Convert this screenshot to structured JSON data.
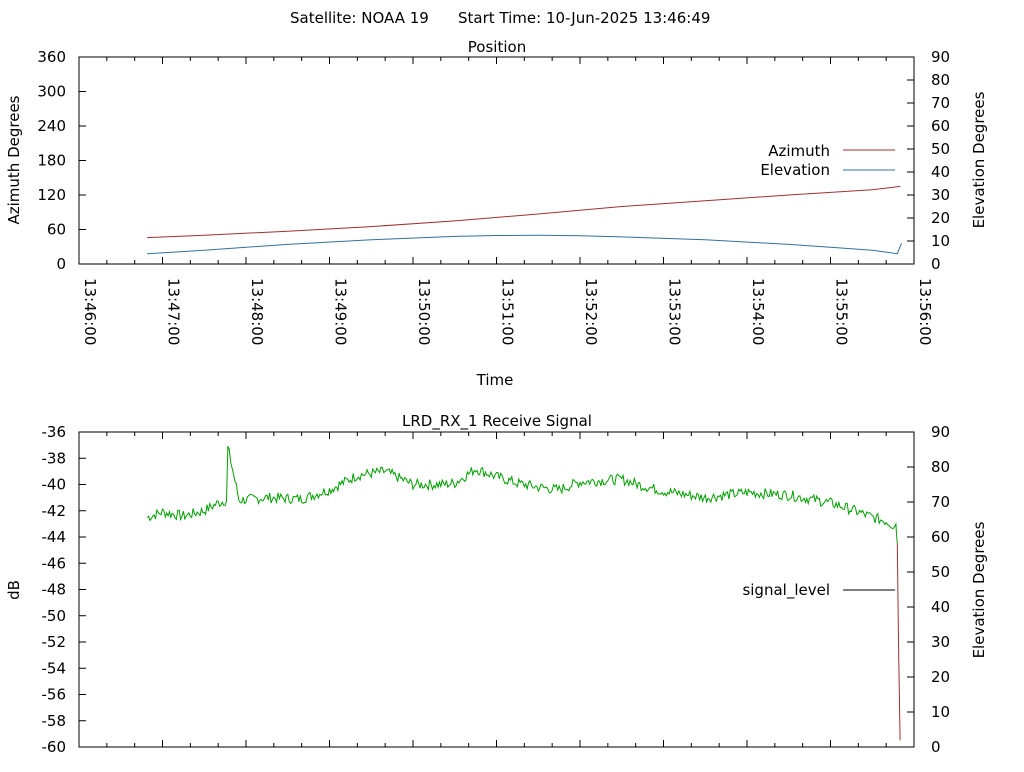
{
  "header": {
    "satellite": "Satellite: NOAA 19",
    "start_time": "Start Time: 10-Jun-2025 13:46:49"
  },
  "chart_data": [
    {
      "type": "line",
      "title": "Position",
      "xlabel": "Time",
      "ylabel": "Azimuth Degrees",
      "y2label": "Elevation Degrees",
      "xlim": [
        "13:46:00",
        "13:56:00"
      ],
      "ylim": [
        0,
        360
      ],
      "y2lim": [
        0,
        90
      ],
      "x_ticks": [
        "13:46:00",
        "13:47:00",
        "13:48:00",
        "13:49:00",
        "13:50:00",
        "13:51:00",
        "13:52:00",
        "13:53:00",
        "13:54:00",
        "13:55:00",
        "13:56:00"
      ],
      "y_ticks": [
        0,
        60,
        120,
        180,
        240,
        300,
        360
      ],
      "y2_ticks": [
        0,
        10,
        20,
        30,
        40,
        50,
        60,
        70,
        80,
        90
      ],
      "legend_position": "right",
      "colors": {
        "azimuth": "#a03030",
        "elevation": "#3070a0"
      },
      "series": [
        {
          "name": "Azimuth",
          "axis": "y",
          "x": [
            "13:46:49",
            "13:47:30",
            "13:48:30",
            "13:49:30",
            "13:50:30",
            "13:51:30",
            "13:52:30",
            "13:53:30",
            "13:54:30",
            "13:55:30",
            "13:55:50"
          ],
          "values": [
            46,
            50,
            57,
            65,
            75,
            87,
            100,
            110,
            120,
            129,
            135
          ]
        },
        {
          "name": "Elevation",
          "axis": "y2",
          "x": [
            "13:46:49",
            "13:47:30",
            "13:48:30",
            "13:49:30",
            "13:50:30",
            "13:51:00",
            "13:51:30",
            "13:52:00",
            "13:52:30",
            "13:53:30",
            "13:54:30",
            "13:55:00",
            "13:55:30",
            "13:55:48",
            "13:55:51"
          ],
          "values": [
            4.5,
            6,
            8.5,
            10.5,
            12,
            12.4,
            12.5,
            12.3,
            11.8,
            10.5,
            8.5,
            7.3,
            6,
            4.5,
            9
          ]
        }
      ]
    },
    {
      "type": "line",
      "title": "LRD_RX_1 Receive Signal",
      "ylabel": "dB",
      "y2label": "Elevation Degrees",
      "xlim": [
        "13:46:00",
        "13:56:00"
      ],
      "ylim": [
        -60,
        -36
      ],
      "y2lim": [
        0,
        90
      ],
      "y_ticks": [
        -36,
        -38,
        -40,
        -42,
        -44,
        -46,
        -48,
        -50,
        -52,
        -54,
        -56,
        -58,
        -60
      ],
      "y2_ticks": [
        0,
        10,
        20,
        30,
        40,
        50,
        60,
        70,
        80,
        90
      ],
      "legend_position": "right",
      "colors": {
        "signal": "#00a000",
        "drop": "#a03030",
        "legend_line": "#000000"
      },
      "legend": [
        "signal_level"
      ],
      "series": [
        {
          "name": "signal_level",
          "x": [
            "13:46:49",
            "13:47:00",
            "13:47:15",
            "13:47:30",
            "13:47:40",
            "13:47:46",
            "13:47:47",
            "13:47:55",
            "13:48:15",
            "13:48:40",
            "13:49:00",
            "13:49:20",
            "13:49:40",
            "13:50:00",
            "13:50:20",
            "13:50:30",
            "13:50:45",
            "13:51:00",
            "13:51:15",
            "13:51:30",
            "13:51:45",
            "13:52:00",
            "13:52:15",
            "13:52:30",
            "13:52:45",
            "13:53:00",
            "13:53:30",
            "13:54:00",
            "13:54:30",
            "13:55:00",
            "13:55:15",
            "13:55:30",
            "13:55:40",
            "13:55:45",
            "13:55:47",
            "13:55:48",
            "13:55:49",
            "13:55:50"
          ],
          "values": [
            -42.5,
            -42.1,
            -42.4,
            -42.0,
            -41.4,
            -41.2,
            -37.2,
            -41.2,
            -41.0,
            -41.1,
            -40.4,
            -39.3,
            -39.0,
            -40.0,
            -40.0,
            -39.9,
            -38.8,
            -39.4,
            -39.9,
            -40.2,
            -40.4,
            -39.8,
            -39.7,
            -39.6,
            -40.1,
            -40.5,
            -41.0,
            -40.6,
            -40.8,
            -41.4,
            -41.9,
            -42.5,
            -42.8,
            -43.1,
            -43.0,
            -44.5,
            -53.0,
            -59.5
          ]
        }
      ]
    }
  ]
}
